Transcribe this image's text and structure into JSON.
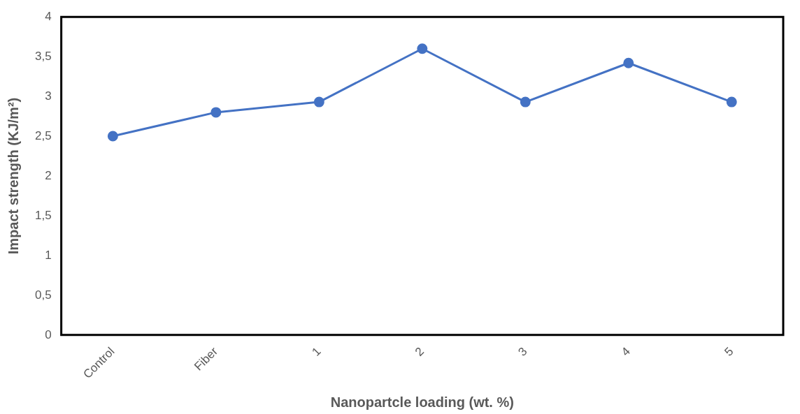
{
  "chart_data": {
    "type": "line",
    "xlabel": "Nanopartcle loading (wt. %)",
    "ylabel": "Impact strength (KJ/m²)",
    "categories": [
      "Control",
      "Fiber",
      "1",
      "2",
      "3",
      "4",
      "5"
    ],
    "series": [
      {
        "color": "#4472c4",
        "values": [
          2.5,
          2.8,
          2.93,
          3.6,
          2.93,
          3.42,
          2.93
        ]
      }
    ],
    "ylim": [
      0,
      4
    ],
    "yticks": [
      0,
      {
        "value": 0.5,
        "label": "0,5"
      },
      1,
      {
        "value": 1.5,
        "label": "1,5"
      },
      2,
      {
        "value": 2.5,
        "label": "2,5"
      },
      3,
      {
        "value": 3.5,
        "label": "3,5"
      },
      4
    ],
    "grid": false,
    "legend": false,
    "marker": "circle",
    "line_style": "solid"
  }
}
